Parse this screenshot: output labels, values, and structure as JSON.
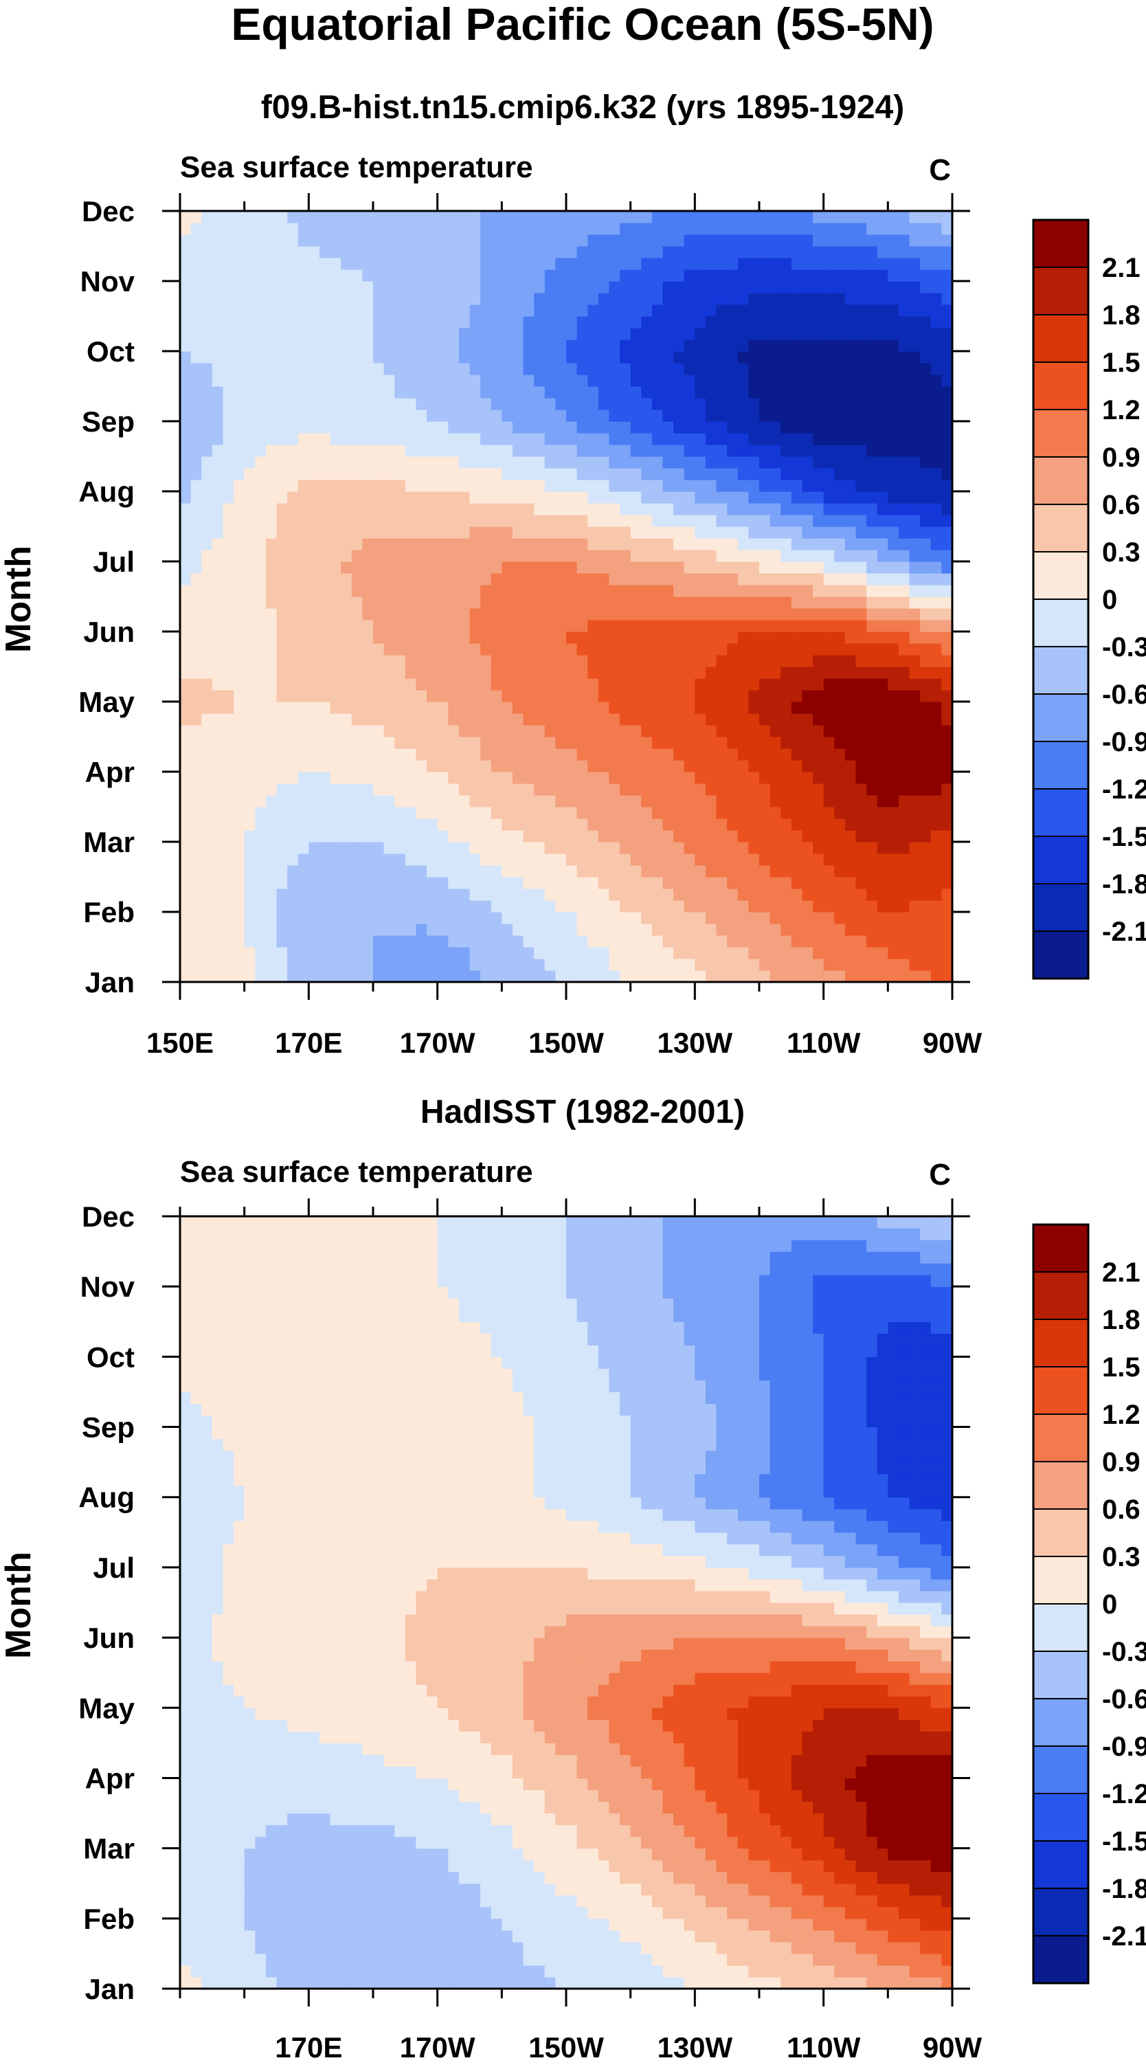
{
  "figure": {
    "main_title": "Equatorial Pacific Ocean (5S-5N)"
  },
  "chart_data": [
    {
      "type": "heatmap",
      "title": "f09.B-hist.tn15.cmip6.k32 (yrs 1895-1924)",
      "left_label": "Sea surface temperature",
      "right_label": "C",
      "ylabel": "Month",
      "xlabel": "",
      "x_tick_labels": [
        "150E",
        "170E",
        "170W",
        "150W",
        "130W",
        "110W",
        "90W"
      ],
      "x_tick_lon": [
        150,
        170,
        190,
        210,
        230,
        250,
        270
      ],
      "x_range": [
        150,
        270
      ],
      "y_tick_labels": [
        "Jan",
        "Feb",
        "Mar",
        "Apr",
        "May",
        "Jun",
        "Jul",
        "Aug",
        "Sep",
        "Oct",
        "Nov",
        "Dec"
      ],
      "lon_grid": [
        150,
        160,
        170,
        180,
        190,
        200,
        210,
        220,
        230,
        240,
        250,
        260,
        270
      ],
      "values": [
        [
          0.2,
          0.1,
          -0.5,
          -0.6,
          -0.9,
          -0.5,
          -0.3,
          0.0,
          0.2,
          0.5,
          0.8,
          1.0,
          1.3
        ],
        [
          0.1,
          0.0,
          -0.6,
          -0.6,
          -0.5,
          -0.3,
          0.0,
          0.3,
          0.6,
          0.9,
          1.2,
          1.5,
          1.4
        ],
        [
          0.1,
          0.0,
          -0.3,
          -0.3,
          -0.1,
          0.2,
          0.4,
          0.7,
          1.0,
          1.3,
          1.6,
          1.9,
          1.7
        ],
        [
          0.1,
          0.1,
          0.0,
          0.1,
          0.3,
          0.6,
          0.8,
          1.0,
          1.2,
          1.5,
          1.9,
          2.3,
          2.2
        ],
        [
          0.4,
          0.3,
          0.3,
          0.4,
          0.6,
          0.9,
          1.1,
          1.3,
          1.5,
          1.9,
          2.3,
          2.4,
          2.0
        ],
        [
          0.1,
          0.2,
          0.4,
          0.6,
          0.8,
          1.0,
          1.2,
          1.3,
          1.4,
          1.5,
          1.5,
          1.3,
          0.8
        ],
        [
          -0.1,
          0.2,
          0.5,
          0.7,
          0.8,
          0.9,
          0.9,
          0.7,
          0.5,
          0.2,
          -0.1,
          -0.6,
          -1.1
        ],
        [
          -0.4,
          0.1,
          0.4,
          0.4,
          0.3,
          0.2,
          0.0,
          -0.3,
          -0.7,
          -1.1,
          -1.6,
          -1.9,
          -2.1
        ],
        [
          -0.6,
          -0.2,
          -0.1,
          -0.2,
          -0.3,
          -0.6,
          -0.9,
          -1.3,
          -1.7,
          -2.1,
          -2.3,
          -2.3,
          -2.2
        ],
        [
          -0.3,
          -0.2,
          -0.2,
          -0.3,
          -0.5,
          -0.8,
          -1.2,
          -1.6,
          -1.9,
          -2.2,
          -2.2,
          -2.2,
          -2.0
        ],
        [
          -0.2,
          -0.2,
          -0.2,
          -0.3,
          -0.4,
          -0.7,
          -1.0,
          -1.3,
          -1.6,
          -1.7,
          -1.7,
          -1.6,
          -1.3
        ],
        [
          0.1,
          -0.1,
          -0.4,
          -0.5,
          -0.6,
          -0.6,
          -0.7,
          -0.8,
          -1.0,
          -1.0,
          -0.8,
          -0.6,
          -0.3
        ]
      ],
      "colorbar_labels": [
        "2.1",
        "1.8",
        "1.5",
        "1.2",
        "0.9",
        "0.6",
        "0.3",
        "0",
        "-0.3",
        "-0.6",
        "-0.9",
        "-1.2",
        "-1.5",
        "-1.8",
        "-2.1"
      ]
    },
    {
      "type": "heatmap",
      "title": "HadISST (1982-2001)",
      "left_label": "Sea surface temperature",
      "right_label": "C",
      "ylabel": "Month",
      "xlabel": "",
      "x_tick_labels": [
        "170E",
        "170W",
        "150W",
        "130W",
        "110W",
        "90W"
      ],
      "x_tick_lon": [
        170,
        190,
        210,
        230,
        250,
        270
      ],
      "x_range": [
        150,
        270
      ],
      "y_tick_labels": [
        "Jan",
        "Feb",
        "Mar",
        "Apr",
        "May",
        "Jun",
        "Jul",
        "Aug",
        "Sep",
        "Oct",
        "Nov",
        "Dec"
      ],
      "lon_grid": [
        150,
        160,
        170,
        180,
        190,
        200,
        210,
        220,
        230,
        240,
        250,
        260,
        270
      ],
      "values": [
        [
          0.1,
          -0.2,
          -0.4,
          -0.5,
          -0.5,
          -0.4,
          -0.3,
          -0.2,
          0.0,
          0.2,
          0.4,
          0.6,
          0.9
        ],
        [
          -0.2,
          -0.3,
          -0.5,
          -0.6,
          -0.5,
          -0.3,
          -0.1,
          0.1,
          0.4,
          0.7,
          1.0,
          1.4,
          1.7
        ],
        [
          -0.2,
          -0.3,
          -0.4,
          -0.4,
          -0.3,
          -0.1,
          0.2,
          0.5,
          0.9,
          1.3,
          1.7,
          2.2,
          2.3
        ],
        [
          -0.1,
          -0.2,
          -0.2,
          -0.1,
          0.0,
          0.2,
          0.5,
          0.8,
          1.2,
          1.6,
          2.0,
          2.3,
          2.3
        ],
        [
          -0.1,
          0.0,
          0.1,
          0.2,
          0.3,
          0.5,
          0.8,
          1.1,
          1.4,
          1.6,
          1.8,
          1.8,
          1.5
        ],
        [
          -0.1,
          0.1,
          0.1,
          0.2,
          0.4,
          0.5,
          0.7,
          0.8,
          0.9,
          0.9,
          0.9,
          0.6,
          0.2
        ],
        [
          -0.2,
          0.1,
          0.1,
          0.2,
          0.3,
          0.3,
          0.3,
          0.2,
          0.1,
          -0.1,
          -0.4,
          -0.8,
          -1.1
        ],
        [
          -0.3,
          0.0,
          0.1,
          0.2,
          0.2,
          0.1,
          -0.1,
          -0.3,
          -0.6,
          -0.9,
          -1.2,
          -1.5,
          -1.7
        ],
        [
          -0.1,
          0.1,
          0.2,
          0.3,
          0.2,
          0.1,
          -0.1,
          -0.3,
          -0.5,
          -0.8,
          -1.2,
          -1.6,
          -1.7
        ],
        [
          0.1,
          0.1,
          0.1,
          0.1,
          0.1,
          0.0,
          -0.2,
          -0.4,
          -0.6,
          -0.9,
          -1.2,
          -1.6,
          -1.7
        ],
        [
          0.1,
          0.1,
          0.1,
          0.1,
          0.0,
          -0.1,
          -0.3,
          -0.5,
          -0.7,
          -0.9,
          -1.3,
          -1.4,
          -1.2
        ],
        [
          0.1,
          0.1,
          0.1,
          0.1,
          0.0,
          -0.1,
          -0.3,
          -0.5,
          -0.7,
          -0.8,
          -0.7,
          -0.5,
          -0.2
        ]
      ],
      "colorbar_labels": [
        "2.1",
        "1.8",
        "1.5",
        "1.2",
        "0.9",
        "0.6",
        "0.3",
        "0",
        "-0.3",
        "-0.6",
        "-0.9",
        "-1.2",
        "-1.5",
        "-1.8",
        "-2.1"
      ]
    }
  ],
  "colormap": {
    "levels": [
      -2.1,
      -1.8,
      -1.5,
      -1.2,
      -0.9,
      -0.6,
      -0.3,
      0,
      0.3,
      0.6,
      0.9,
      1.2,
      1.5,
      1.8,
      2.1
    ],
    "colors": [
      "#0a1c8e",
      "#0c2bb5",
      "#1437d8",
      "#2a58ec",
      "#4a7df4",
      "#7ba3f7",
      "#a8c3f9",
      "#d5e6fb",
      "#fde9d9",
      "#f8c6ab",
      "#f4a17f",
      "#f27a4c",
      "#ec5220",
      "#d93709",
      "#b61f05",
      "#8c0000"
    ]
  }
}
